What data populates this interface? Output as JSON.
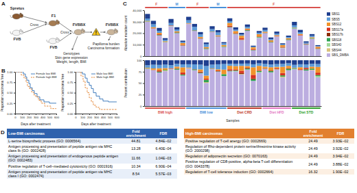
{
  "panel_labels": [
    "A",
    "B",
    "C",
    "D"
  ],
  "diagram": {
    "nodes": [
      {
        "label": "Spretus"
      },
      {
        "label": "FVB"
      },
      {
        "label": "F1"
      },
      {
        "label": "FVB"
      },
      {
        "label": "FVBBX"
      },
      {
        "label": "FVBBX"
      }
    ],
    "edges": [
      {
        "label": "Cross"
      },
      {
        "label": "Cross"
      }
    ],
    "notes": [
      [
        "Genotypes",
        "Skin gene expression",
        "Weight, length, BMI"
      ],
      [
        "Papilloma burden",
        "Carcinoma formation"
      ]
    ]
  },
  "chart_data": [
    {
      "type": "line",
      "xlabel": "Days after treatment",
      "ylabel": "Proportion carcinoma free",
      "xlim": [
        0,
        600
      ],
      "xticks": [
        0,
        100,
        200,
        300,
        400,
        500,
        600
      ],
      "ylim": [
        0,
        1
      ],
      "yticks": [
        {
          "value": 0,
          "label": "0.00"
        },
        {
          "value": 0.25,
          "label": "0.25"
        },
        {
          "value": 0.5,
          "label": "0.50"
        },
        {
          "value": 0.75,
          "label": "0.75"
        },
        {
          "value": 1,
          "label": "1.00"
        }
      ],
      "legend": "upper right",
      "series": [
        {
          "name": "Female low BMI",
          "color": "#2f6fb5",
          "line_style": "solid",
          "x": [
            0,
            120,
            150,
            170,
            200,
            220,
            250,
            280,
            320,
            360,
            420,
            500,
            600
          ],
          "values": [
            1,
            0.95,
            0.88,
            0.8,
            0.72,
            0.62,
            0.55,
            0.48,
            0.4,
            0.33,
            0.28,
            0.25,
            0.25
          ]
        },
        {
          "name": "Female high BMI",
          "color": "#e07b24",
          "line_style": "dashed",
          "x": [
            0,
            90,
            130,
            160,
            180,
            210,
            240,
            270,
            300,
            340,
            380,
            430,
            520,
            600
          ],
          "values": [
            1,
            0.92,
            0.85,
            0.75,
            0.65,
            0.6,
            0.52,
            0.45,
            0.4,
            0.32,
            0.25,
            0.18,
            0.12,
            0.12
          ]
        }
      ]
    },
    {
      "type": "line",
      "xlabel": "Days after treatment",
      "ylabel": "Proportion carcinoma free",
      "xlim": [
        0,
        600
      ],
      "xticks": [
        0,
        100,
        200,
        300,
        400,
        500,
        600
      ],
      "ylim": [
        0,
        1
      ],
      "yticks": [
        {
          "value": 0,
          "label": "0.00"
        },
        {
          "value": 0.25,
          "label": "0.25"
        },
        {
          "value": 0.5,
          "label": "0.50"
        },
        {
          "value": 0.75,
          "label": "0.75"
        },
        {
          "value": 1,
          "label": "1.00"
        }
      ],
      "legend": "upper right",
      "series": [
        {
          "name": "Male low BMI",
          "color": "#2f6fb5",
          "line_style": "solid",
          "x": [
            0,
            100,
            140,
            170,
            200,
            230,
            260,
            300,
            350,
            400,
            480,
            600
          ],
          "values": [
            1,
            0.95,
            0.85,
            0.75,
            0.68,
            0.6,
            0.5,
            0.42,
            0.35,
            0.3,
            0.28,
            0.28
          ]
        },
        {
          "name": "Male high BMI",
          "color": "#e07b24",
          "line_style": "dashed",
          "x": [
            0,
            80,
            110,
            140,
            170,
            200,
            230,
            260,
            300,
            350,
            600
          ],
          "values": [
            1,
            0.9,
            0.78,
            0.62,
            0.5,
            0.38,
            0.28,
            0.2,
            0.15,
            0.1,
            0.1
          ]
        }
      ]
    },
    {
      "type": "bar",
      "stacked": true,
      "legend": "right",
      "ylabel": "Absolute mutation count",
      "xlabel": "Samples",
      "categories": [
        null,
        null,
        null,
        null,
        null,
        null,
        null,
        null,
        null,
        null,
        null,
        null,
        null,
        null,
        null,
        null,
        null,
        null,
        null,
        null,
        null,
        null,
        null,
        null,
        null,
        null,
        null,
        null,
        null,
        null
      ],
      "ylim": [
        0,
        40000
      ],
      "yticks": [
        0,
        {
          "value": 10000,
          "label": "10,000"
        },
        {
          "value": 20000,
          "label": "20,000"
        },
        {
          "value": 30000,
          "label": "30,000"
        },
        {
          "value": 40000,
          "label": "40,000"
        }
      ],
      "percent_panel": {
        "ylabel": "Percent contribution",
        "ylim": [
          0,
          100
        ],
        "yticks": [
          0,
          25,
          50,
          75,
          100
        ]
      },
      "sex": [
        "F",
        "F",
        "F",
        "F",
        "M",
        "M",
        "M",
        "F",
        "F",
        "F",
        "F",
        "M",
        "M",
        "M",
        "F",
        "F",
        "F",
        "F",
        "F",
        "F",
        "F",
        "F",
        "F",
        "F",
        "F",
        "F",
        "F",
        "F",
        "F",
        "F"
      ],
      "group": [
        "BMI high",
        "BMI high",
        "BMI high",
        "BMI high",
        "BMI high",
        "BMI high",
        "BMI high",
        "BMI low",
        "BMI low",
        "BMI low",
        "BMI low",
        "BMI low",
        "BMI low",
        "BMI low",
        "Diet CRD",
        "Diet CRD",
        "Diet CRD",
        "Diet CRD",
        "Diet CRD",
        "Diet CRD",
        "Diet HFD",
        "Diet HFD",
        "Diet HFD",
        "Diet HFD",
        "Diet HFD",
        "Diet STD",
        "Diet STD",
        "Diet STD",
        "Diet STD",
        "Diet STD"
      ],
      "series": [
        {
          "name": "SBS1",
          "color": "#1f3f8f",
          "values": [
            4000,
            3000,
            2500,
            1500,
            3500,
            2000,
            1200,
            3000,
            2500,
            2000,
            1500,
            2500,
            2000,
            1000,
            2500,
            2000,
            1500,
            2000,
            800,
            1500,
            2000,
            1500,
            1800,
            900,
            1200,
            3000,
            2000,
            1200,
            1500,
            800
          ]
        },
        {
          "name": "SBS5",
          "color": "#5d9bd8",
          "values": [
            2000,
            2500,
            1800,
            1200,
            2200,
            1500,
            900,
            2500,
            3000,
            2200,
            2500,
            2000,
            2500,
            1500,
            1500,
            1200,
            1000,
            1500,
            600,
            1200,
            1500,
            1000,
            1300,
            700,
            1000,
            2000,
            1500,
            900,
            1200,
            600
          ]
        },
        {
          "name": "SBS12",
          "color": "#f0932b",
          "values": [
            500,
            800,
            1200,
            600,
            0,
            900,
            1500,
            400,
            0,
            1000,
            800,
            0,
            600,
            1200,
            2500,
            1800,
            2200,
            1000,
            1500,
            2000,
            800,
            1200,
            600,
            1500,
            900,
            300,
            1000,
            0,
            800,
            1200
          ]
        },
        {
          "name": "SBS17a",
          "color": "#d7301f",
          "values": [
            0,
            300,
            500,
            0,
            400,
            0,
            600,
            200,
            0,
            500,
            300,
            0,
            400,
            0,
            800,
            600,
            1000,
            500,
            700,
            400,
            300,
            0,
            500,
            600,
            0,
            0,
            400,
            300,
            0,
            500
          ]
        },
        {
          "name": "SBS17b",
          "color": "#8c2d04",
          "values": [
            0,
            0,
            200,
            0,
            0,
            300,
            0,
            0,
            200,
            0,
            0,
            300,
            0,
            0,
            300,
            0,
            400,
            0,
            200,
            0,
            0,
            200,
            0,
            0,
            300,
            0,
            0,
            200,
            0,
            0
          ]
        },
        {
          "name": "SBS18",
          "color": "#31a354",
          "values": [
            300,
            0,
            400,
            200,
            0,
            500,
            300,
            0,
            400,
            300,
            600,
            0,
            200,
            500,
            400,
            300,
            0,
            600,
            300,
            500,
            200,
            400,
            0,
            300,
            500,
            400,
            0,
            300,
            500,
            200
          ]
        },
        {
          "name": "SBS40",
          "color": "#a1d99b",
          "values": [
            0,
            200,
            0,
            0,
            300,
            0,
            0,
            200,
            0,
            0,
            0,
            300,
            0,
            0,
            0,
            200,
            0,
            0,
            0,
            300,
            0,
            0,
            200,
            0,
            0,
            200,
            0,
            0,
            0,
            300
          ]
        },
        {
          "name": "SBS44",
          "color": "#d9c27a",
          "values": [
            0,
            0,
            0,
            200,
            0,
            0,
            0,
            0,
            0,
            0,
            200,
            0,
            0,
            0,
            0,
            0,
            200,
            0,
            0,
            0,
            0,
            0,
            0,
            200,
            0,
            0,
            0,
            0,
            200,
            0
          ]
        },
        {
          "name": "SBS_DMBA",
          "color": "#bcaee0",
          "values": [
            30000,
            24000,
            18000,
            12000,
            26000,
            20000,
            9000,
            28000,
            22000,
            15000,
            6000,
            21000,
            17000,
            8000,
            25000,
            19000,
            14000,
            22000,
            5000,
            16000,
            20000,
            12000,
            17000,
            7000,
            14000,
            24000,
            18000,
            10000,
            15000,
            6000
          ]
        }
      ]
    }
  ],
  "tables": [
    {
      "title": "Low-BMI carcinomas",
      "columns": [
        "Fold enrichment",
        "FDR"
      ],
      "rows": [
        [
          "L-serine biosynthetic process (GO: 0006564)",
          44.81,
          "4.84E−02"
        ],
        [
          "Antigen processing and presentation of peptide antigen via MHC class Ib (GO: 0002428)",
          13.28,
          "6.40E−04"
        ],
        [
          "Antigen processing and presentation of endogenous peptide antigen (GO: 0002483)",
          11.66,
          "1.04E−03"
        ],
        [
          "Positive regulation of T-cell–mediated cytotoxicity (GO: 0001916)",
          10.34,
          "6.90E−04"
        ],
        [
          "Antigen processing and presentation of peptide antigen via MHC class I (GO: 0002474)",
          8.54,
          "5.57E−03"
        ]
      ]
    },
    {
      "title": "High-BMI carcinomas",
      "columns": [
        "Fold enrichment",
        "FDR"
      ],
      "rows": [
        [
          "Positive regulation of T-cell anergy (GO: 0002669)",
          24.49,
          "3.93E−02"
        ],
        [
          "Regulation of Rho-dependent protein serine/threonine kinase activity (GO: 2000298)",
          24.49,
          "3.92E−02"
        ],
        [
          "Regulation of adiponectin secretion (GO: 0070163)",
          24.49,
          "3.94E−02"
        ],
        [
          "Positive regulation of CD8-positive, alpha-beta T-cell differentiation (GO: 0043378)",
          24.49,
          "3.88E−02"
        ],
        [
          "Regulation of T-cell tolerance induction (GO: 0002664)",
          16.32,
          "1.90E−02"
        ]
      ]
    }
  ]
}
